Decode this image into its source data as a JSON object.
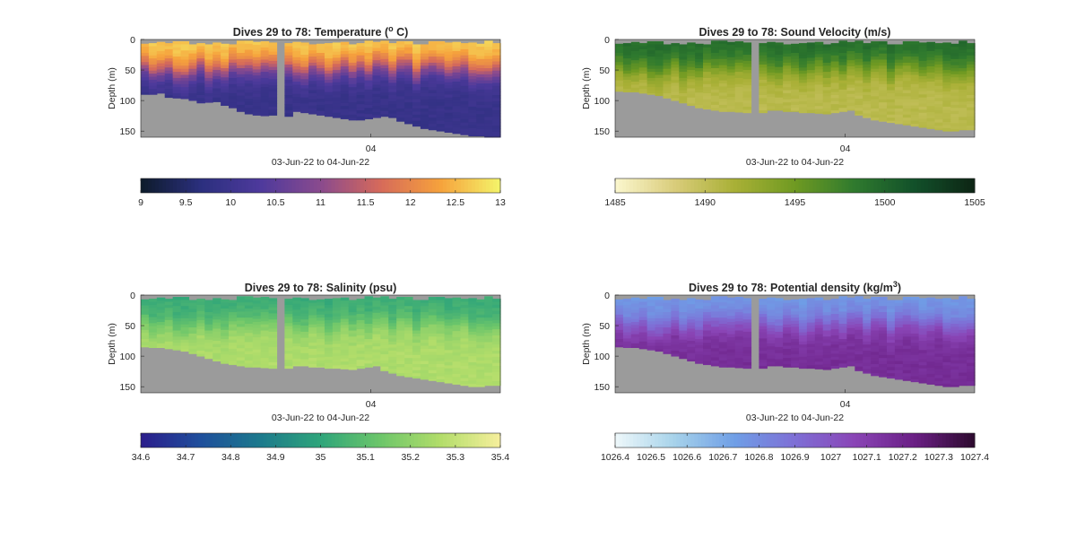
{
  "chart_data": [
    {
      "type": "heatmap",
      "title": "Dives 29 to 78: Temperature (",
      "title_sup": "o",
      "title_after": " C)",
      "ylabel": "Depth (m)",
      "xlabel": "03-Jun-22 to 04-Jun-22",
      "x_tick_labels": [
        "04"
      ],
      "y_tick_labels": [
        "0",
        "50",
        "100",
        "150"
      ],
      "ylim": [
        160,
        0
      ],
      "y_reversed": true,
      "colormap": [
        "#0d1b2a",
        "#2b2f7e",
        "#4e3a9c",
        "#8a4a8e",
        "#d66a5a",
        "#f6a23c",
        "#f4f46a"
      ],
      "colorbar_range": [
        9,
        13
      ],
      "colorbar_tick_labels": [
        "9",
        "9.5",
        "10",
        "10.5",
        "11",
        "11.5",
        "12",
        "12.5",
        "13"
      ],
      "surface_value": 12.7,
      "deep_value": 9.9,
      "thermocline_depth_m": 45,
      "bottom_depth_m": [
        90,
        90,
        88,
        95,
        96,
        97,
        100,
        104,
        103,
        102,
        108,
        112,
        118,
        122,
        124,
        125,
        124,
        124,
        126,
        118,
        120,
        122,
        124,
        126,
        128,
        130,
        132,
        132,
        130,
        128,
        126,
        128,
        134,
        138,
        142,
        146,
        148,
        150,
        152,
        154,
        156,
        158,
        158,
        160,
        160
      ],
      "gap_index": 17
    },
    {
      "type": "heatmap",
      "title": "Dives 29 to 78: Sound Velocity (m/s)",
      "ylabel": "Depth (m)",
      "xlabel": "03-Jun-22 to 04-Jun-22",
      "x_tick_labels": [
        "04"
      ],
      "y_tick_labels": [
        "0",
        "50",
        "100",
        "150"
      ],
      "ylim": [
        160,
        0
      ],
      "y_reversed": true,
      "colormap": [
        "#fbf7cf",
        "#d9cc7a",
        "#a9b036",
        "#6f9a22",
        "#2f7a2e",
        "#12502a",
        "#0d2514"
      ],
      "colorbar_range": [
        1485,
        1505
      ],
      "colorbar_tick_labels": [
        "1485",
        "1490",
        "1495",
        "1500",
        "1505"
      ],
      "surface_value": 1499.5,
      "deep_value": 1490.5,
      "thermocline_depth_m": 45,
      "bottom_depth_m": [
        85,
        86,
        86,
        88,
        90,
        92,
        96,
        100,
        104,
        108,
        112,
        114,
        116,
        118,
        118,
        119,
        120,
        120,
        120,
        116,
        116,
        118,
        118,
        120,
        120,
        121,
        122,
        120,
        118,
        116,
        124,
        128,
        132,
        134,
        136,
        138,
        140,
        142,
        144,
        146,
        148,
        150,
        150,
        148,
        148
      ],
      "gap_index": 17
    },
    {
      "type": "heatmap",
      "title": "Dives 29 to 78: Salinity (psu)",
      "ylabel": "Depth (m)",
      "xlabel": "03-Jun-22 to 04-Jun-22",
      "x_tick_labels": [
        "04"
      ],
      "y_tick_labels": [
        "0",
        "50",
        "100",
        "150"
      ],
      "ylim": [
        160,
        0
      ],
      "y_reversed": true,
      "colormap": [
        "#2b1d8c",
        "#1f4f9c",
        "#1c7a8c",
        "#2fa57a",
        "#6dc66a",
        "#b2dd6a",
        "#f6ef9c"
      ],
      "colorbar_range": [
        34.6,
        35.4
      ],
      "colorbar_tick_labels": [
        "34.6",
        "34.7",
        "34.8",
        "34.9",
        "35",
        "35.1",
        "35.2",
        "35.3",
        "35.4"
      ],
      "surface_value": 35.02,
      "deep_value": 35.26,
      "thermocline_depth_m": 45,
      "bottom_depth_m": [
        85,
        86,
        86,
        88,
        90,
        92,
        96,
        100,
        104,
        108,
        112,
        114,
        116,
        118,
        118,
        119,
        120,
        120,
        120,
        116,
        116,
        118,
        118,
        120,
        120,
        121,
        122,
        120,
        118,
        116,
        124,
        128,
        132,
        134,
        136,
        138,
        140,
        142,
        144,
        146,
        148,
        150,
        150,
        148,
        148
      ],
      "gap_index": 17
    },
    {
      "type": "heatmap",
      "title": "Dives 29 to 78: Potential density (kg/m",
      "title_sup": "3",
      "title_after": ")",
      "ylabel": "Depth (m)",
      "xlabel": "03-Jun-22 to 04-Jun-22",
      "x_tick_labels": [
        "04"
      ],
      "y_tick_labels": [
        "0",
        "50",
        "100",
        "150"
      ],
      "ylim": [
        160,
        0
      ],
      "y_reversed": true,
      "colormap": [
        "#eef8fb",
        "#a6d2ea",
        "#6f9ee6",
        "#7e6fd6",
        "#8a45b6",
        "#6a1f84",
        "#2d0a2e"
      ],
      "colorbar_range": [
        1026.4,
        1027.4
      ],
      "colorbar_tick_labels": [
        "1026.4",
        "1026.5",
        "1026.6",
        "1026.7",
        "1026.8",
        "1026.9",
        "1027",
        "1027.1",
        "1027.2",
        "1027.3",
        "1027.4"
      ],
      "surface_value": 1026.75,
      "deep_value": 1027.17,
      "thermocline_depth_m": 45,
      "bottom_depth_m": [
        85,
        86,
        86,
        88,
        90,
        92,
        96,
        100,
        104,
        108,
        112,
        114,
        116,
        118,
        118,
        119,
        120,
        120,
        120,
        116,
        116,
        118,
        118,
        120,
        120,
        121,
        122,
        120,
        118,
        116,
        124,
        128,
        132,
        134,
        136,
        138,
        140,
        142,
        144,
        146,
        148,
        150,
        150,
        148,
        148
      ],
      "gap_index": 17
    }
  ]
}
